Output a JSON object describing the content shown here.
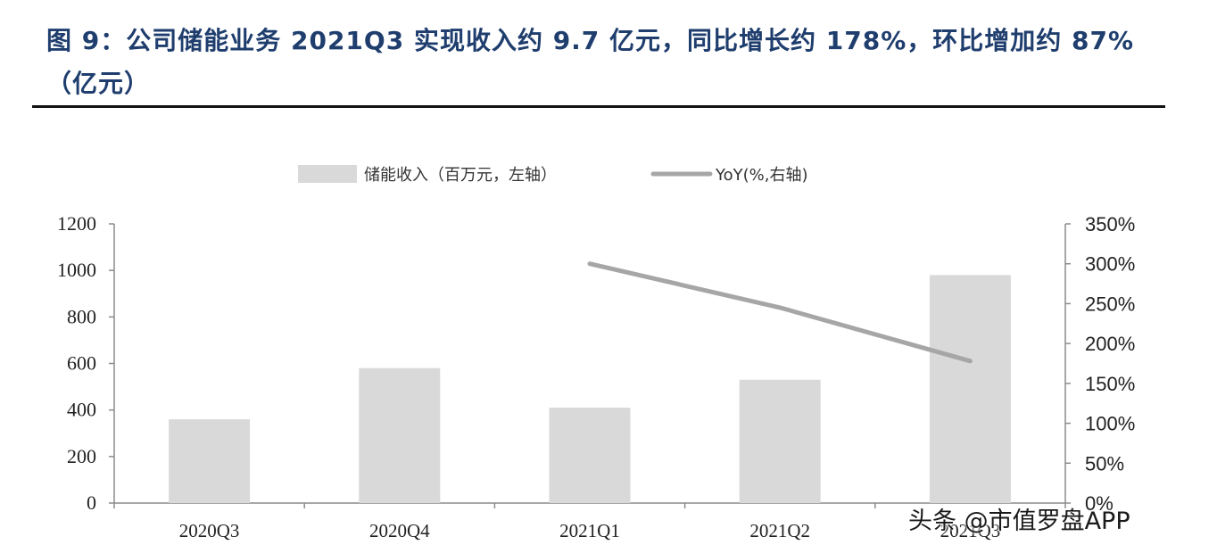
{
  "title": "图 9：公司储能业务 2021Q3 实现收入约 9.7 亿元，同比增长约 178%，环比增加约 87%（亿元）",
  "watermark": "头条 @市值罗盘APP",
  "colors": {
    "bar": "#d9d9d9",
    "line": "#a6a6a6",
    "title": "#1f3e6e"
  },
  "chart_data": {
    "type": "bar",
    "categories": [
      "2020Q3",
      "2020Q4",
      "2021Q1",
      "2021Q2",
      "2021Q3"
    ],
    "series": [
      {
        "name": "储能收入（百万元，左轴）",
        "type": "bar",
        "axis": "left",
        "values": [
          360,
          580,
          410,
          530,
          980
        ]
      },
      {
        "name": "YoY(%,右轴)",
        "type": "line",
        "axis": "right",
        "values": [
          null,
          null,
          300,
          245,
          178
        ]
      }
    ],
    "ylim_left": [
      0,
      1200
    ],
    "yticks_left": [
      "0",
      "200",
      "400",
      "600",
      "800",
      "1000",
      "1200"
    ],
    "ylim_right": [
      0,
      350
    ],
    "yticks_right": [
      "0%",
      "50%",
      "100%",
      "150%",
      "200%",
      "250%",
      "300%",
      "350%"
    ],
    "legend_position": "top-center",
    "grid": false
  }
}
